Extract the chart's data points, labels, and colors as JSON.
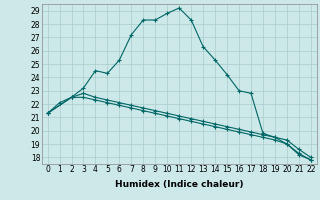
{
  "title": "",
  "xlabel": "Humidex (Indice chaleur)",
  "bg_color": "#cce8e8",
  "grid_color": "#aacccc",
  "line_color": "#006666",
  "xlim": [
    -0.5,
    22.5
  ],
  "ylim": [
    17.5,
    29.5
  ],
  "xticks": [
    0,
    1,
    2,
    3,
    4,
    5,
    6,
    7,
    8,
    9,
    10,
    11,
    12,
    13,
    14,
    15,
    16,
    17,
    18,
    19,
    20,
    21,
    22
  ],
  "yticks": [
    18,
    19,
    20,
    21,
    22,
    23,
    24,
    25,
    26,
    27,
    28,
    29
  ],
  "line1_x": [
    0,
    1,
    2,
    3,
    4,
    5,
    6,
    7,
    8,
    9,
    10,
    11,
    12,
    13,
    14,
    15,
    16,
    17,
    18,
    19,
    20,
    21,
    22
  ],
  "line1_y": [
    21.3,
    22.1,
    22.5,
    23.2,
    24.5,
    24.3,
    25.3,
    27.2,
    28.3,
    28.3,
    28.8,
    29.2,
    28.3,
    26.3,
    25.3,
    24.2,
    23.0,
    22.8,
    19.8,
    19.5,
    19.0,
    18.2,
    17.8
  ],
  "line2_x": [
    0,
    2,
    3,
    4,
    5,
    6,
    7,
    8,
    9,
    10,
    11,
    12,
    13,
    14,
    15,
    16,
    17,
    18,
    19,
    20,
    21,
    22
  ],
  "line2_y": [
    21.3,
    22.5,
    22.8,
    22.5,
    22.3,
    22.1,
    21.9,
    21.7,
    21.5,
    21.3,
    21.1,
    20.9,
    20.7,
    20.5,
    20.3,
    20.1,
    19.9,
    19.7,
    19.5,
    19.3,
    18.6,
    18.0
  ],
  "line3_x": [
    0,
    2,
    3,
    4,
    5,
    6,
    7,
    8,
    9,
    10,
    11,
    12,
    13,
    14,
    15,
    16,
    17,
    18,
    19,
    20,
    21,
    22
  ],
  "line3_y": [
    21.3,
    22.5,
    22.5,
    22.3,
    22.1,
    21.9,
    21.7,
    21.5,
    21.3,
    21.1,
    20.9,
    20.7,
    20.5,
    20.3,
    20.1,
    19.9,
    19.7,
    19.5,
    19.3,
    19.0,
    18.3,
    17.8
  ],
  "markersize": 3,
  "linewidth": 0.8,
  "tick_fontsize": 5.5,
  "xlabel_fontsize": 6.5
}
